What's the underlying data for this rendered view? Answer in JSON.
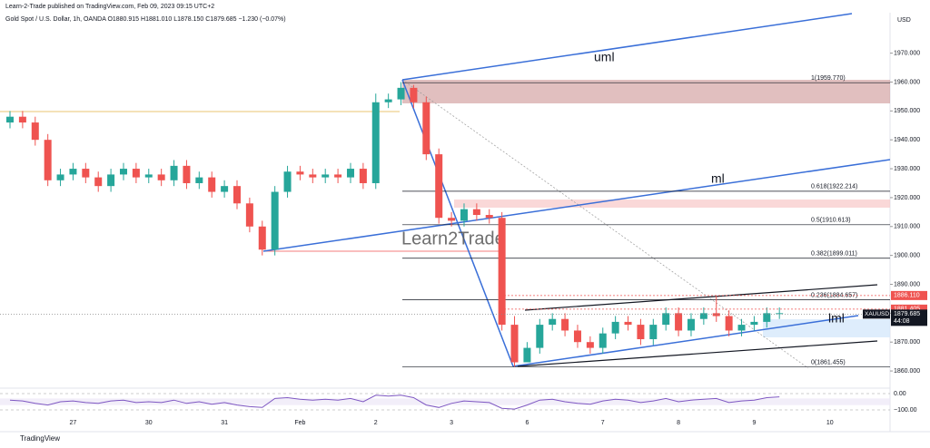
{
  "chart_data": {
    "type": "candlestick",
    "header": "Learn-2-Trade published on TradingView.com, Feb 09, 2023 09:15 UTC+2",
    "title": "Gold Spot / U.S. Dollar, 1h, OANDA  O1880.915 H1881.010 L1878.150 C1879.685 −1.230 (−0.07%)",
    "currency": "USD",
    "watermark": "Learn2Trade",
    "footer": "TradingView",
    "up_color": "#26a69a",
    "down_color": "#ef5350",
    "categories": [
      null,
      null,
      null,
      null,
      null,
      "27",
      null,
      null,
      null,
      null,
      null,
      "30",
      null,
      null,
      null,
      null,
      null,
      "31",
      null,
      null,
      null,
      null,
      null,
      "Feb",
      null,
      null,
      null,
      null,
      null,
      "2",
      null,
      null,
      null,
      null,
      null,
      "3",
      null,
      null,
      null,
      null,
      null,
      "6",
      null,
      null,
      null,
      null,
      null,
      "7",
      null,
      null,
      null,
      null,
      null,
      "8",
      null,
      null,
      null,
      null,
      null,
      "9",
      null,
      null,
      null,
      null,
      null,
      "10"
    ],
    "open": [
      1946,
      1948,
      1946,
      1940,
      1926,
      1928,
      1930,
      1927,
      1924,
      1928,
      1930,
      1927,
      1928,
      1926,
      1931,
      1925,
      1927,
      1922,
      1924,
      1918,
      1910,
      1902,
      1922,
      1929,
      1928,
      1927,
      1928,
      1927,
      1930,
      1925,
      1953,
      1954,
      1958,
      1953,
      1935,
      1913,
      1912,
      1916,
      1914,
      1913,
      1876,
      1863,
      1868,
      1876,
      1878,
      1874,
      1870,
      1868,
      1873,
      1877,
      1876,
      1871,
      1876,
      1880,
      1874,
      1878,
      1880,
      1879,
      1874,
      1876,
      1877,
      1880,
      null,
      null,
      null,
      null
    ],
    "high": [
      1950,
      1950,
      1948,
      1942,
      1930,
      1932,
      1932,
      1929,
      1930,
      1932,
      1932,
      1930,
      1930,
      1933,
      1933,
      1929,
      1929,
      1926,
      1926,
      1920,
      1912,
      1924,
      1931,
      1931,
      1930,
      1930,
      1930,
      1932,
      1932,
      1956,
      1956,
      1960,
      1959,
      1955,
      1937,
      1915,
      1918,
      1918,
      1916,
      1915,
      1879,
      1870,
      1878,
      1880,
      1880,
      1876,
      1872,
      1875,
      1879,
      1879,
      1878,
      1878,
      1882,
      1882,
      1880,
      1882,
      1886,
      1881,
      1878,
      1879,
      1882,
      1882,
      null,
      null,
      null,
      null
    ],
    "low": [
      1944,
      1944,
      1938,
      1924,
      1924,
      1926,
      1925,
      1922,
      1922,
      1926,
      1925,
      1925,
      1924,
      1924,
      1923,
      1923,
      1920,
      1920,
      1916,
      1908,
      1900,
      1900,
      1920,
      1926,
      1925,
      1925,
      1925,
      1925,
      1923,
      1923,
      1951,
      1952,
      1951,
      1933,
      1911,
      1910,
      1910,
      1912,
      1911,
      1874,
      1861.5,
      1863,
      1866,
      1874,
      1872,
      1868,
      1866,
      1866,
      1871,
      1874,
      1869,
      1869,
      1874,
      1872,
      1872,
      1876,
      1877,
      1872,
      1872,
      1874,
      1875,
      1878,
      null,
      null,
      null,
      null
    ],
    "close": [
      1948,
      1946,
      1940,
      1926,
      1928,
      1930,
      1927,
      1924,
      1928,
      1930,
      1927,
      1928,
      1926,
      1931,
      1925,
      1927,
      1922,
      1924,
      1918,
      1910,
      1902,
      1922,
      1929,
      1928,
      1927,
      1928,
      1927,
      1930,
      1925,
      1953,
      1954,
      1958,
      1953,
      1935,
      1913,
      1912,
      1916,
      1914,
      1913,
      1876,
      1863,
      1868,
      1876,
      1878,
      1874,
      1870,
      1868,
      1873,
      1877,
      1876,
      1871,
      1876,
      1880,
      1874,
      1878,
      1880,
      1879,
      1874,
      1876,
      1877,
      1880,
      1880,
      null,
      null,
      null,
      null
    ],
    "ylim": [
      1855,
      1984
    ],
    "yticks": [
      {
        "value": 1860,
        "label": "1860.000"
      },
      {
        "value": 1870,
        "label": "1870.000"
      },
      {
        "value": 1880,
        "label": "1880.000"
      },
      {
        "value": 1890,
        "label": "1890.000"
      },
      {
        "value": 1900,
        "label": "1900.000"
      },
      {
        "value": 1910,
        "label": "1910.000"
      },
      {
        "value": 1920,
        "label": "1920.000"
      },
      {
        "value": 1930,
        "label": "1930.000"
      },
      {
        "value": 1940,
        "label": "1940.000"
      },
      {
        "value": 1950,
        "label": "1950.000"
      },
      {
        "value": 1960,
        "label": "1960.000"
      },
      {
        "value": 1970,
        "label": "1970.000"
      }
    ],
    "fib_levels": [
      {
        "value": 1959.77,
        "label": "1(1959.770)"
      },
      {
        "value": 1922.214,
        "label": "0.618(1922.214)"
      },
      {
        "value": 1910.613,
        "label": "0.5(1910.613)"
      },
      {
        "value": 1899.011,
        "label": "0.382(1899.011)"
      },
      {
        "value": 1884.657,
        "label": "0.236(1884.657)"
      },
      {
        "value": 1861.455,
        "label": "0(1861.455)"
      }
    ],
    "price_tags": [
      {
        "value": 1886.11,
        "label": "1886.110",
        "color": "#ef5350"
      },
      {
        "value": 1881.405,
        "label": "1881.405",
        "color": "#ef5350"
      }
    ],
    "current_price": {
      "value": 1879.685,
      "label": "1879.685",
      "symbol": "XAUUSD",
      "countdown": "44:08",
      "color": "#131722"
    },
    "line_labels": [
      "uml",
      "ml",
      "lml"
    ],
    "oscillator": {
      "ylim": [
        -100,
        0
      ],
      "yticks": [
        {
          "value": 0,
          "label": "0.00"
        },
        {
          "value": -100,
          "label": "−100.00"
        }
      ],
      "color": "#7e57c2",
      "values": [
        -40,
        -45,
        -60,
        -70,
        -50,
        -45,
        -55,
        -60,
        -45,
        -40,
        -55,
        -50,
        -55,
        -40,
        -60,
        -50,
        -65,
        -55,
        -70,
        -80,
        -85,
        -30,
        -25,
        -35,
        -40,
        -35,
        -40,
        -30,
        -50,
        -10,
        -15,
        -10,
        -25,
        -70,
        -85,
        -60,
        -45,
        -50,
        -55,
        -90,
        -95,
        -70,
        -40,
        -35,
        -50,
        -60,
        -65,
        -45,
        -35,
        -40,
        -55,
        -45,
        -30,
        -50,
        -40,
        -35,
        -30,
        -55,
        -45,
        -40,
        -25,
        -20,
        null,
        null,
        null,
        null
      ]
    }
  }
}
